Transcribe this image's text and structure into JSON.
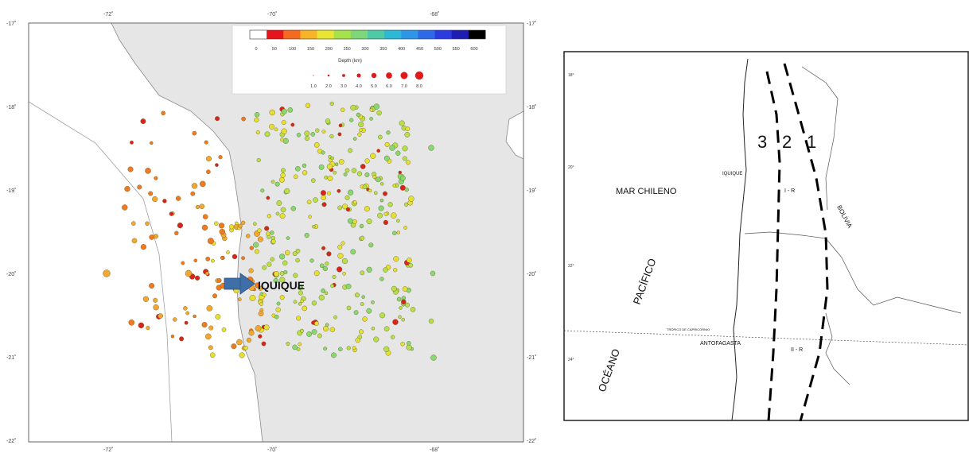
{
  "left_map": {
    "ticks_x": [
      "-72˚",
      "-70˚",
      "-68˚"
    ],
    "ticks_y": [
      "-17˚",
      "-18˚",
      "-19˚",
      "-20˚",
      "-21˚",
      "-22˚"
    ],
    "label": "IQUIQUE",
    "legend": {
      "depth_ticks": [
        "0",
        "50",
        "100",
        "150",
        "200",
        "250",
        "300",
        "350",
        "400",
        "450",
        "500",
        "550",
        "600"
      ],
      "depth_title": "Depth (km)",
      "mag_ticks": [
        "1.0",
        "2.0",
        "3.0",
        "4.0",
        "5.0",
        "6.0",
        "7.0",
        "8.0"
      ],
      "depth_colors": [
        "#ffffff",
        "#e8141c",
        "#f46a1e",
        "#f8b428",
        "#e8e632",
        "#a6e24a",
        "#7ed87a",
        "#4ecaa8",
        "#2cb8d6",
        "#2e96e6",
        "#2e6ae8",
        "#2a3ce0",
        "#1e1eb4",
        "#000000"
      ]
    },
    "colors": {
      "ocean": "#ffffff",
      "land": "#e6e6e6",
      "coast": "#8a8a8a",
      "arrow": "#3f6fa8"
    }
  },
  "right_map": {
    "zones": [
      "3",
      "2",
      "1"
    ],
    "sea_label": "MAR CHILENO",
    "ocean_label_1": "PACÍFICO",
    "ocean_label_2": "OCÉANO",
    "city_1": "IQUIQUE",
    "city_2": "ANTOFAGASTA",
    "tropic": "TRÓPICO DE CAPRICORNIO",
    "region_1": "I - R",
    "region_2": "II - R",
    "country": "BOLIVIA",
    "lat_labels": [
      "18°",
      "20°",
      "22°",
      "24°"
    ]
  }
}
